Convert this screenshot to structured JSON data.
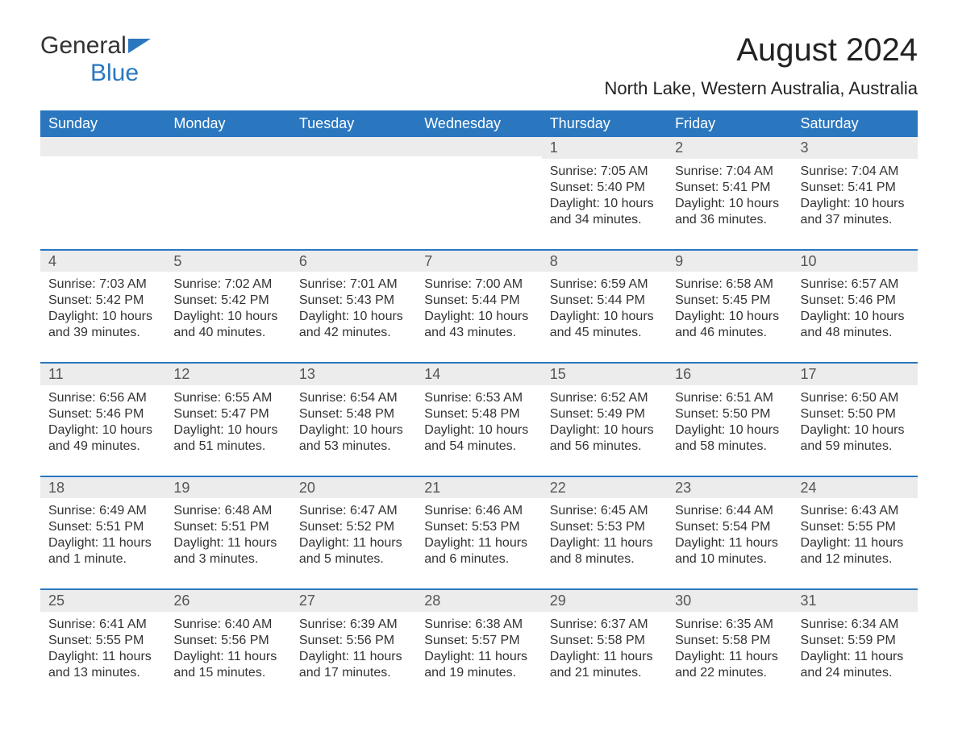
{
  "logo": {
    "word1": "General",
    "word2": "Blue"
  },
  "title": "August 2024",
  "location": "North Lake, Western Australia, Australia",
  "colors": {
    "header_bg": "#2a77bf",
    "header_text": "#ffffff",
    "daynum_bg": "#ececec",
    "body_text": "#333333",
    "row_border": "#2a77bf"
  },
  "typography": {
    "title_fontsize": 40,
    "location_fontsize": 22,
    "header_fontsize": 18,
    "cell_fontsize": 16
  },
  "day_labels": [
    "Sunday",
    "Monday",
    "Tuesday",
    "Wednesday",
    "Thursday",
    "Friday",
    "Saturday"
  ],
  "weeks": [
    [
      null,
      null,
      null,
      null,
      {
        "n": "1",
        "sr": "Sunrise: 7:05 AM",
        "ss": "Sunset: 5:40 PM",
        "dl": "Daylight: 10 hours and 34 minutes."
      },
      {
        "n": "2",
        "sr": "Sunrise: 7:04 AM",
        "ss": "Sunset: 5:41 PM",
        "dl": "Daylight: 10 hours and 36 minutes."
      },
      {
        "n": "3",
        "sr": "Sunrise: 7:04 AM",
        "ss": "Sunset: 5:41 PM",
        "dl": "Daylight: 10 hours and 37 minutes."
      }
    ],
    [
      {
        "n": "4",
        "sr": "Sunrise: 7:03 AM",
        "ss": "Sunset: 5:42 PM",
        "dl": "Daylight: 10 hours and 39 minutes."
      },
      {
        "n": "5",
        "sr": "Sunrise: 7:02 AM",
        "ss": "Sunset: 5:42 PM",
        "dl": "Daylight: 10 hours and 40 minutes."
      },
      {
        "n": "6",
        "sr": "Sunrise: 7:01 AM",
        "ss": "Sunset: 5:43 PM",
        "dl": "Daylight: 10 hours and 42 minutes."
      },
      {
        "n": "7",
        "sr": "Sunrise: 7:00 AM",
        "ss": "Sunset: 5:44 PM",
        "dl": "Daylight: 10 hours and 43 minutes."
      },
      {
        "n": "8",
        "sr": "Sunrise: 6:59 AM",
        "ss": "Sunset: 5:44 PM",
        "dl": "Daylight: 10 hours and 45 minutes."
      },
      {
        "n": "9",
        "sr": "Sunrise: 6:58 AM",
        "ss": "Sunset: 5:45 PM",
        "dl": "Daylight: 10 hours and 46 minutes."
      },
      {
        "n": "10",
        "sr": "Sunrise: 6:57 AM",
        "ss": "Sunset: 5:46 PM",
        "dl": "Daylight: 10 hours and 48 minutes."
      }
    ],
    [
      {
        "n": "11",
        "sr": "Sunrise: 6:56 AM",
        "ss": "Sunset: 5:46 PM",
        "dl": "Daylight: 10 hours and 49 minutes."
      },
      {
        "n": "12",
        "sr": "Sunrise: 6:55 AM",
        "ss": "Sunset: 5:47 PM",
        "dl": "Daylight: 10 hours and 51 minutes."
      },
      {
        "n": "13",
        "sr": "Sunrise: 6:54 AM",
        "ss": "Sunset: 5:48 PM",
        "dl": "Daylight: 10 hours and 53 minutes."
      },
      {
        "n": "14",
        "sr": "Sunrise: 6:53 AM",
        "ss": "Sunset: 5:48 PM",
        "dl": "Daylight: 10 hours and 54 minutes."
      },
      {
        "n": "15",
        "sr": "Sunrise: 6:52 AM",
        "ss": "Sunset: 5:49 PM",
        "dl": "Daylight: 10 hours and 56 minutes."
      },
      {
        "n": "16",
        "sr": "Sunrise: 6:51 AM",
        "ss": "Sunset: 5:50 PM",
        "dl": "Daylight: 10 hours and 58 minutes."
      },
      {
        "n": "17",
        "sr": "Sunrise: 6:50 AM",
        "ss": "Sunset: 5:50 PM",
        "dl": "Daylight: 10 hours and 59 minutes."
      }
    ],
    [
      {
        "n": "18",
        "sr": "Sunrise: 6:49 AM",
        "ss": "Sunset: 5:51 PM",
        "dl": "Daylight: 11 hours and 1 minute."
      },
      {
        "n": "19",
        "sr": "Sunrise: 6:48 AM",
        "ss": "Sunset: 5:51 PM",
        "dl": "Daylight: 11 hours and 3 minutes."
      },
      {
        "n": "20",
        "sr": "Sunrise: 6:47 AM",
        "ss": "Sunset: 5:52 PM",
        "dl": "Daylight: 11 hours and 5 minutes."
      },
      {
        "n": "21",
        "sr": "Sunrise: 6:46 AM",
        "ss": "Sunset: 5:53 PM",
        "dl": "Daylight: 11 hours and 6 minutes."
      },
      {
        "n": "22",
        "sr": "Sunrise: 6:45 AM",
        "ss": "Sunset: 5:53 PM",
        "dl": "Daylight: 11 hours and 8 minutes."
      },
      {
        "n": "23",
        "sr": "Sunrise: 6:44 AM",
        "ss": "Sunset: 5:54 PM",
        "dl": "Daylight: 11 hours and 10 minutes."
      },
      {
        "n": "24",
        "sr": "Sunrise: 6:43 AM",
        "ss": "Sunset: 5:55 PM",
        "dl": "Daylight: 11 hours and 12 minutes."
      }
    ],
    [
      {
        "n": "25",
        "sr": "Sunrise: 6:41 AM",
        "ss": "Sunset: 5:55 PM",
        "dl": "Daylight: 11 hours and 13 minutes."
      },
      {
        "n": "26",
        "sr": "Sunrise: 6:40 AM",
        "ss": "Sunset: 5:56 PM",
        "dl": "Daylight: 11 hours and 15 minutes."
      },
      {
        "n": "27",
        "sr": "Sunrise: 6:39 AM",
        "ss": "Sunset: 5:56 PM",
        "dl": "Daylight: 11 hours and 17 minutes."
      },
      {
        "n": "28",
        "sr": "Sunrise: 6:38 AM",
        "ss": "Sunset: 5:57 PM",
        "dl": "Daylight: 11 hours and 19 minutes."
      },
      {
        "n": "29",
        "sr": "Sunrise: 6:37 AM",
        "ss": "Sunset: 5:58 PM",
        "dl": "Daylight: 11 hours and 21 minutes."
      },
      {
        "n": "30",
        "sr": "Sunrise: 6:35 AM",
        "ss": "Sunset: 5:58 PM",
        "dl": "Daylight: 11 hours and 22 minutes."
      },
      {
        "n": "31",
        "sr": "Sunrise: 6:34 AM",
        "ss": "Sunset: 5:59 PM",
        "dl": "Daylight: 11 hours and 24 minutes."
      }
    ]
  ]
}
